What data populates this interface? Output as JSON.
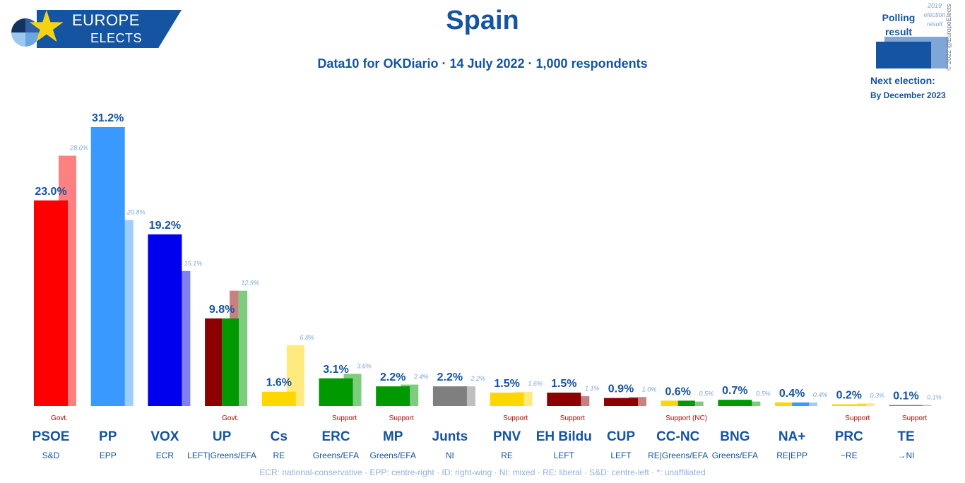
{
  "header": {
    "logo_line1": "EUROPE",
    "logo_line2": "ELECTS",
    "title": "Spain",
    "subtitle": "Data10 for OKDiario · 14 July 2022 · 1,000 respondents"
  },
  "legend": {
    "polling_label": "Polling result",
    "election_label": "2019 election result",
    "next_election_label": "Next election:",
    "next_election_value": "By December 2023",
    "copyright": "© 2022 @EuropeElects"
  },
  "footer": {
    "text": "ECR: national-conservative · EPP: centre-right · ID: right-wing · NI: mixed · RE: liberal · S&D: centre-left · *: unaffiliated"
  },
  "colors": {
    "brand": "#1454a0",
    "light_label": "#7fa6d6",
    "status": "#c00000"
  },
  "chart_data": {
    "type": "bar",
    "title": "Spain",
    "xlabel": "",
    "ylabel": "",
    "ylim": [
      0,
      31.2
    ],
    "grid": false,
    "series": [
      {
        "name": "Polling result",
        "values": [
          23.0,
          31.2,
          19.2,
          9.8,
          1.6,
          3.1,
          2.2,
          2.2,
          1.5,
          1.5,
          0.9,
          0.6,
          0.7,
          0.4,
          0.2,
          0.1
        ]
      },
      {
        "name": "2019 election result",
        "values": [
          28.0,
          20.8,
          15.1,
          12.9,
          6.8,
          3.6,
          2.4,
          2.2,
          1.6,
          1.1,
          1.0,
          0.5,
          0.5,
          0.4,
          0.3,
          0.1
        ]
      }
    ],
    "parties": [
      {
        "name": "PSOE",
        "group": "S&D",
        "status": "Govt.",
        "value": "23.0%",
        "prev": "28.0%",
        "colors": [
          "#ff0000"
        ],
        "prev_colors": [
          "#ff8080"
        ]
      },
      {
        "name": "PP",
        "group": "EPP",
        "status": "",
        "value": "31.2%",
        "prev": "20.8%",
        "colors": [
          "#3a99ff"
        ],
        "prev_colors": [
          "#9ccdff"
        ]
      },
      {
        "name": "VOX",
        "group": "ECR",
        "status": "",
        "value": "19.2%",
        "prev": "15.1%",
        "colors": [
          "#0000ee"
        ],
        "prev_colors": [
          "#7f7ff6"
        ]
      },
      {
        "name": "UP",
        "group": "LEFT|Greens/EFA",
        "status": "Govt.",
        "value": "9.8%",
        "prev": "12.9%",
        "colors": [
          "#8b0000",
          "#009900"
        ],
        "prev_colors": [
          "#c88080",
          "#7fcc7f"
        ]
      },
      {
        "name": "Cs",
        "group": "RE",
        "status": "",
        "value": "1.6%",
        "prev": "6.8%",
        "colors": [
          "#ffd700"
        ],
        "prev_colors": [
          "#ffea80"
        ]
      },
      {
        "name": "ERC",
        "group": "Greens/EFA",
        "status": "Support",
        "value": "3.1%",
        "prev": "3.6%",
        "colors": [
          "#009900"
        ],
        "prev_colors": [
          "#7fcc7f"
        ]
      },
      {
        "name": "MP",
        "group": "Greens/EFA",
        "status": "Support",
        "value": "2.2%",
        "prev": "2.4%",
        "colors": [
          "#009900"
        ],
        "prev_colors": [
          "#7fcc7f"
        ]
      },
      {
        "name": "Junts",
        "group": "NI",
        "status": "",
        "value": "2.2%",
        "prev": "2.2%",
        "colors": [
          "#7f7f7f"
        ],
        "prev_colors": [
          "#bfbfbf"
        ]
      },
      {
        "name": "PNV",
        "group": "RE",
        "status": "Support",
        "value": "1.5%",
        "prev": "1.6%",
        "colors": [
          "#ffd700"
        ],
        "prev_colors": [
          "#ffea80"
        ]
      },
      {
        "name": "EH Bildu",
        "group": "LEFT",
        "status": "Support",
        "value": "1.5%",
        "prev": "1.1%",
        "colors": [
          "#8b0000"
        ],
        "prev_colors": [
          "#c88080"
        ]
      },
      {
        "name": "CUP",
        "group": "LEFT",
        "status": "",
        "value": "0.9%",
        "prev": "1.0%",
        "colors": [
          "#8b0000"
        ],
        "prev_colors": [
          "#c88080"
        ]
      },
      {
        "name": "CC-NC",
        "group": "RE|Greens/EFA",
        "status": "Support (NC)",
        "value": "0.6%",
        "prev": "0.5%",
        "colors": [
          "#ffd700",
          "#009900"
        ],
        "prev_colors": [
          "#7fcc7f"
        ]
      },
      {
        "name": "BNG",
        "group": "Greens/EFA",
        "status": "",
        "value": "0.7%",
        "prev": "0.5%",
        "colors": [
          "#009900"
        ],
        "prev_colors": [
          "#7fcc7f"
        ]
      },
      {
        "name": "NA+",
        "group": "RE|EPP",
        "status": "",
        "value": "0.4%",
        "prev": "0.4%",
        "colors": [
          "#ffd700",
          "#3a99ff"
        ],
        "prev_colors": [
          "#9ccdff"
        ]
      },
      {
        "name": "PRC",
        "group": "~RE",
        "status": "Support",
        "value": "0.2%",
        "prev": "0.3%",
        "colors": [
          "#ffd700"
        ],
        "prev_colors": [
          "#ffea80"
        ]
      },
      {
        "name": "TE",
        "group": "→NI",
        "status": "Support",
        "value": "0.1%",
        "prev": "0.1%",
        "colors": [
          "#7f7f7f"
        ],
        "prev_colors": [
          "#bfbfbf"
        ]
      }
    ]
  }
}
